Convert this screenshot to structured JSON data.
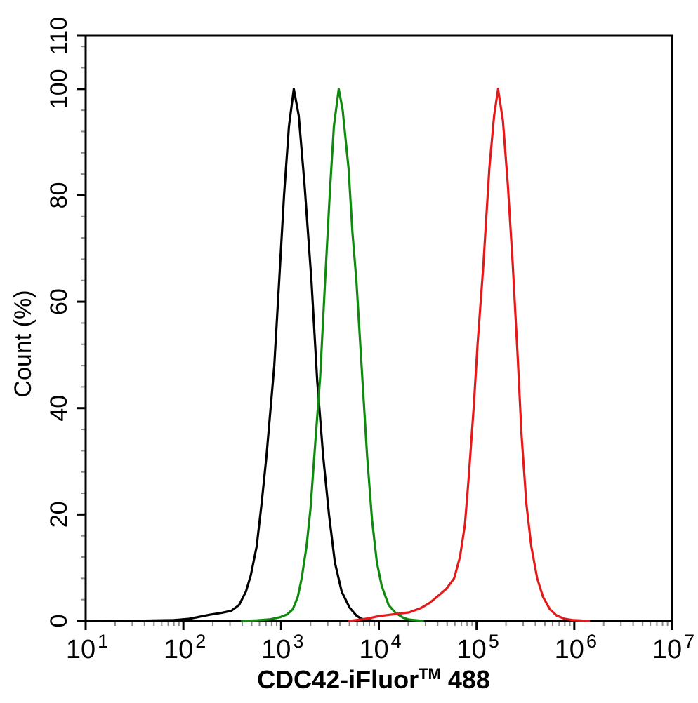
{
  "figure": {
    "background": "#ffffff",
    "description": "Flow cytometry overlay histogram with three fluorescence peaks"
  },
  "colors": {
    "axis": "#000000",
    "major_tick": "#000000",
    "minor_tick": "#8a8a8a",
    "text": "#000000"
  },
  "chart_data": {
    "type": "line",
    "title": "",
    "xlabel": "CDC42-iFluor™ 488",
    "xlabel_parts": {
      "main": "CDC42-iFluor",
      "sup": "TM",
      "tail": " 488"
    },
    "ylabel": "Count  (%)",
    "x_scale": "log10",
    "grid": false,
    "legend": false,
    "x_axis": {
      "min_exponent": 1,
      "max_exponent": 7,
      "tick_label_base": "10",
      "major_tick_exponents": [
        1,
        2,
        3,
        4,
        5,
        6,
        7
      ],
      "minor_ticks_per_decade": [
        2,
        3,
        4,
        5,
        6,
        7,
        8,
        9
      ]
    },
    "y_axis": {
      "min": 0,
      "max": 110,
      "major_ticks": [
        0,
        20,
        40,
        60,
        80,
        100,
        110
      ],
      "minor_tick_step": 4
    },
    "series": [
      {
        "name": "black-curve",
        "color": "#000000",
        "peak_log10x": 3.13,
        "peak_x_approx": 1350,
        "peak_y": 100,
        "points": [
          [
            1.0,
            0
          ],
          [
            1.6,
            0.05
          ],
          [
            1.9,
            0.15
          ],
          [
            2.06,
            0.4
          ],
          [
            2.17,
            0.8
          ],
          [
            2.28,
            1.2
          ],
          [
            2.39,
            1.5
          ],
          [
            2.49,
            1.9
          ],
          [
            2.57,
            3
          ],
          [
            2.64,
            5.5
          ],
          [
            2.69,
            8.6
          ],
          [
            2.75,
            14
          ],
          [
            2.8,
            22
          ],
          [
            2.85,
            31
          ],
          [
            2.93,
            48
          ],
          [
            2.98,
            64
          ],
          [
            3.03,
            80
          ],
          [
            3.08,
            93
          ],
          [
            3.13,
            100
          ],
          [
            3.18,
            95
          ],
          [
            3.24,
            82
          ],
          [
            3.31,
            64
          ],
          [
            3.37,
            45
          ],
          [
            3.43,
            31
          ],
          [
            3.49,
            20
          ],
          [
            3.55,
            11
          ],
          [
            3.62,
            5.5
          ],
          [
            3.7,
            2.5
          ],
          [
            3.77,
            1
          ],
          [
            3.82,
            0.4
          ],
          [
            3.9,
            0.12
          ],
          [
            4.0,
            0
          ]
        ]
      },
      {
        "name": "green-curve",
        "color": "#0f8a0f",
        "peak_log10x": 3.59,
        "peak_x_approx": 3900,
        "peak_y": 100,
        "points": [
          [
            2.6,
            0
          ],
          [
            2.75,
            0.1
          ],
          [
            2.89,
            0.3
          ],
          [
            2.99,
            0.7
          ],
          [
            3.06,
            1.2
          ],
          [
            3.12,
            2.2
          ],
          [
            3.17,
            4.5
          ],
          [
            3.21,
            8
          ],
          [
            3.26,
            14
          ],
          [
            3.3,
            21
          ],
          [
            3.34,
            31
          ],
          [
            3.4,
            46
          ],
          [
            3.45,
            64
          ],
          [
            3.5,
            81
          ],
          [
            3.54,
            93
          ],
          [
            3.59,
            100
          ],
          [
            3.63,
            96
          ],
          [
            3.69,
            85
          ],
          [
            3.73,
            73
          ],
          [
            3.77,
            64
          ],
          [
            3.83,
            46
          ],
          [
            3.88,
            31
          ],
          [
            3.93,
            19
          ],
          [
            3.98,
            11
          ],
          [
            4.03,
            6.5
          ],
          [
            4.1,
            3
          ],
          [
            4.17,
            1.5
          ],
          [
            4.25,
            0.6
          ],
          [
            4.31,
            0.25
          ],
          [
            4.45,
            0
          ]
        ]
      },
      {
        "name": "red-curve",
        "color": "#e41a1a",
        "peak_log10x": 5.22,
        "peak_x_approx": 170000,
        "peak_y": 100,
        "points": [
          [
            3.7,
            0
          ],
          [
            3.79,
            0.2
          ],
          [
            3.9,
            0.5
          ],
          [
            4.0,
            0.9
          ],
          [
            4.13,
            1.2
          ],
          [
            4.22,
            1.4
          ],
          [
            4.31,
            1.6
          ],
          [
            4.43,
            2.4
          ],
          [
            4.52,
            3.4
          ],
          [
            4.6,
            4.6
          ],
          [
            4.69,
            6
          ],
          [
            4.77,
            8
          ],
          [
            4.83,
            12
          ],
          [
            4.88,
            18
          ],
          [
            4.92,
            27
          ],
          [
            4.97,
            40
          ],
          [
            5.01,
            52
          ],
          [
            5.07,
            67
          ],
          [
            5.13,
            85
          ],
          [
            5.18,
            95
          ],
          [
            5.22,
            100
          ],
          [
            5.27,
            94
          ],
          [
            5.32,
            82
          ],
          [
            5.37,
            67
          ],
          [
            5.42,
            50
          ],
          [
            5.46,
            35
          ],
          [
            5.51,
            22
          ],
          [
            5.56,
            14
          ],
          [
            5.62,
            8
          ],
          [
            5.68,
            4.5
          ],
          [
            5.75,
            2.2
          ],
          [
            5.82,
            1
          ],
          [
            5.9,
            0.4
          ],
          [
            5.99,
            0.15
          ],
          [
            6.15,
            0
          ]
        ]
      }
    ]
  }
}
